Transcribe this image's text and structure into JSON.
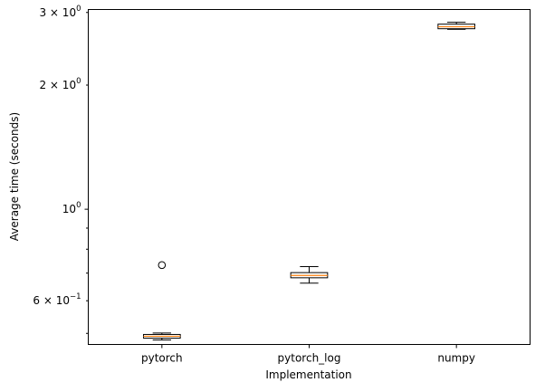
{
  "chart_data": {
    "type": "box",
    "xlabel": "Implementation",
    "ylabel": "Average time (seconds)",
    "yscale": "log",
    "ylim": [
      0.47,
      3.05
    ],
    "grid": false,
    "categories": [
      "pytorch",
      "pytorch_log",
      "numpy"
    ],
    "boxes": [
      {
        "name": "pytorch",
        "whisker_low": 0.482,
        "q1": 0.487,
        "median": 0.492,
        "q3": 0.497,
        "whisker_high": 0.501,
        "outliers": [
          0.732
        ],
        "fill": "#ffffff"
      },
      {
        "name": "pytorch_log",
        "whisker_low": 0.662,
        "q1": 0.682,
        "median": 0.691,
        "q3": 0.702,
        "whisker_high": 0.726,
        "outliers": [],
        "fill": "#ffffff"
      },
      {
        "name": "numpy",
        "whisker_low": 2.73,
        "q1": 2.74,
        "median": 2.77,
        "q3": 2.81,
        "whisker_high": 2.84,
        "outliers": [],
        "fill": "#ffffff"
      }
    ],
    "y_major_ticks": [
      {
        "value": 1.0,
        "base": "10",
        "exp": "0"
      }
    ],
    "y_minor_labeled_ticks": [
      {
        "value": 0.6,
        "coef": "6 × 10",
        "exp": "−1"
      },
      {
        "value": 2.0,
        "coef": "2 × 10",
        "exp": "0"
      },
      {
        "value": 3.0,
        "coef": "3 × 10",
        "exp": "0"
      }
    ],
    "y_minor_unlabeled_ticks": [
      0.5,
      0.7,
      0.8,
      0.9
    ],
    "colors": {
      "median": "#ff7f0e",
      "box": "#000000",
      "axes": "#000000"
    }
  }
}
